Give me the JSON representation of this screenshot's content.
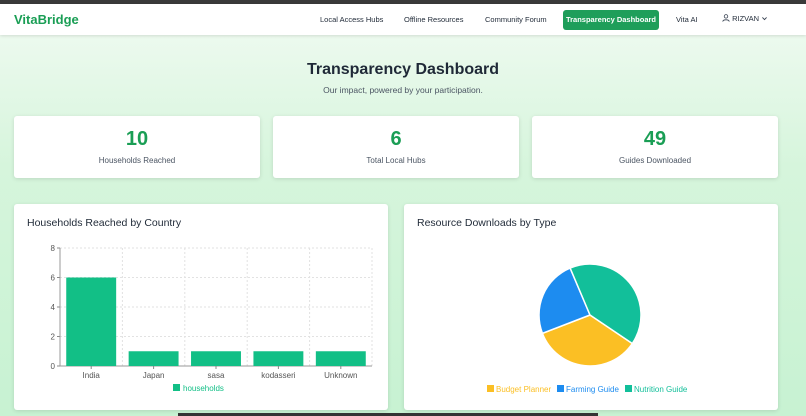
{
  "brand": "VitaBridge",
  "nav": {
    "links": [
      "Local Access Hubs",
      "Offline Resources",
      "Community Forum"
    ],
    "active": "Transparency Dashboard",
    "vita_ai": "Vita AI",
    "user": "RIZVAN"
  },
  "header": {
    "title": "Transparency Dashboard",
    "subtitle": "Our impact, powered by your participation."
  },
  "stats": [
    {
      "value": "10",
      "label": "Households Reached"
    },
    {
      "value": "6",
      "label": "Total Local Hubs"
    },
    {
      "value": "49",
      "label": "Guides Downloaded"
    }
  ],
  "colors": {
    "accent": "#1e9e5a",
    "bar": "#12bf86",
    "budget": "#fbbf24",
    "farming": "#1d8cf0",
    "nutrition": "#12bf9a"
  },
  "chart_data": [
    {
      "type": "bar",
      "title": "Households Reached by Country",
      "categories": [
        "India",
        "Japan",
        "sasa",
        "kodasseri",
        "Unknown"
      ],
      "series": [
        {
          "name": "households",
          "values": [
            6,
            1,
            1,
            1,
            1
          ]
        }
      ],
      "ylim": [
        0,
        8
      ],
      "yticks": [
        0,
        2,
        4,
        6,
        8
      ],
      "grid": true,
      "legend": "bottom"
    },
    {
      "type": "pie",
      "title": "Resource Downloads by Type",
      "labels": [
        "Budget Planner",
        "Farming Guide",
        "Nutrition Guide"
      ],
      "values": [
        17,
        12,
        20
      ],
      "legend": "bottom"
    }
  ]
}
